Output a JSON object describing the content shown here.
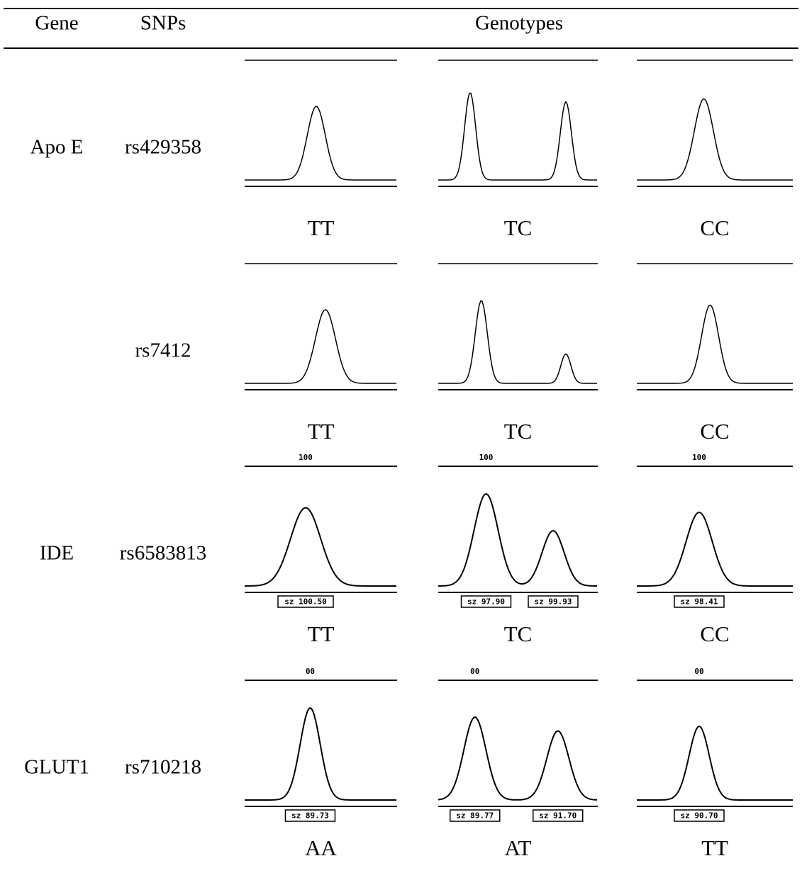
{
  "header": {
    "gene": "Gene",
    "snps": "SNPs",
    "genotypes": "Genotypes"
  },
  "rows": [
    {
      "gene": "Apo E",
      "snp": "rs429358",
      "genotypes": [
        {
          "call": "TT"
        },
        {
          "call": "TC"
        },
        {
          "call": "CC"
        }
      ]
    },
    {
      "snp": "rs7412",
      "genotypes": [
        {
          "call": "TT"
        },
        {
          "call": "TC"
        },
        {
          "call": "CC"
        }
      ]
    },
    {
      "gene": "IDE",
      "snp": "rs6583813",
      "genotypes": [
        {
          "call": "TT",
          "scale": "100",
          "sizes": [
            "sz 100.50"
          ]
        },
        {
          "call": "TC",
          "scale": "100",
          "sizes": [
            "sz 97.90",
            "sz 99.93"
          ]
        },
        {
          "call": "CC",
          "scale": "100",
          "sizes": [
            "sz 98.41"
          ]
        }
      ]
    },
    {
      "gene": "GLUT1",
      "snp": "rs710218",
      "genotypes": [
        {
          "call": "AA",
          "scale": "00",
          "sizes": [
            "sz 89.73"
          ]
        },
        {
          "call": "AT",
          "scale": "00",
          "sizes": [
            "sz 89.77",
            "sz 91.70"
          ]
        },
        {
          "call": "TT",
          "scale": "00",
          "sizes": [
            "sz 90.70"
          ]
        }
      ]
    }
  ]
}
